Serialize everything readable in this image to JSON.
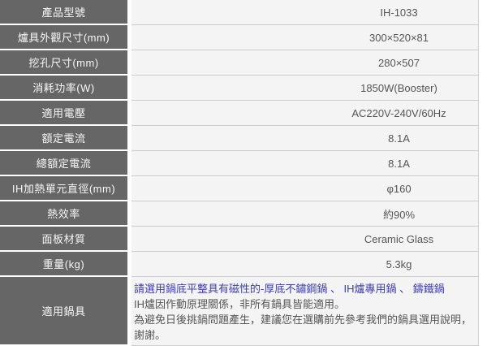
{
  "colors": {
    "label_bg": "#666666",
    "label_text": "#f7f7f7",
    "value_bg": "#f4f4f4",
    "value_text": "#555555",
    "row_border": "#cccccc",
    "highlight_text": "#3c3cb4"
  },
  "spec_table": {
    "rows": [
      {
        "label": "產品型號",
        "value": "IH-1033"
      },
      {
        "label": "爐具外觀尺寸(mm)",
        "value": "300×520×81"
      },
      {
        "label": "挖孔尺寸(mm)",
        "value": "280×507"
      },
      {
        "label": "消耗功率(W)",
        "value": "1850W(Booster)"
      },
      {
        "label": "適用電壓",
        "value": "AC220V-240V/60Hz"
      },
      {
        "label": "額定電流",
        "value": "8.1A"
      },
      {
        "label": "總額定電流",
        "value": "8.1A"
      },
      {
        "label": "IH加熱單元直徑(mm)",
        "value": "φ160"
      },
      {
        "label": "熱效率",
        "value": "約90%"
      },
      {
        "label": "面板材質",
        "value": "Ceramic Glass"
      },
      {
        "label": "重量(kg)",
        "value": "5.3kg"
      }
    ],
    "cookware": {
      "label": "適用鍋具",
      "line1": "請選用鍋底平整具有磁性的-厚底不鏽鋼鍋 、 IH爐專用鍋 、 鑄鐵鍋",
      "line2": "IH爐因作動原理關係，非所有鍋具皆能適用。",
      "line3": "為避免日後挑鍋問題產生，建議您在選購前先參考我們的鍋具選用說明，謝謝。"
    }
  }
}
